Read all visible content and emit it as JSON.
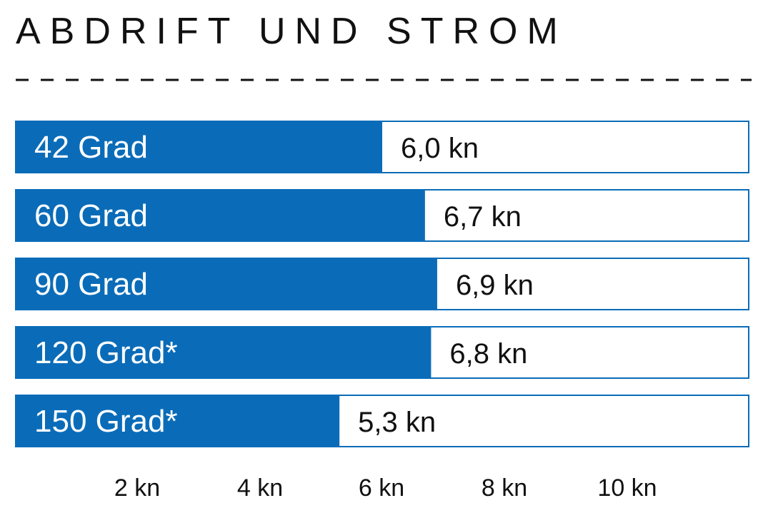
{
  "chart_data": {
    "type": "bar",
    "orientation": "horizontal",
    "title": "ABDRIFT UND STROM",
    "categories": [
      "42 Grad",
      "60 Grad",
      "90 Grad",
      "120 Grad*",
      "150 Grad*"
    ],
    "values": [
      6.0,
      6.7,
      6.9,
      6.8,
      5.3
    ],
    "value_labels": [
      "6,0 kn",
      "6,7 kn",
      "6,9 kn",
      "6,8 kn",
      "5,3 kn"
    ],
    "xticks": [
      2,
      4,
      6,
      8,
      10
    ],
    "xtick_labels": [
      "2 kn",
      "4 kn",
      "6 kn",
      "8 kn",
      "10 kn"
    ],
    "xlim": [
      0,
      12
    ],
    "grid": false,
    "legend": "none",
    "colors": {
      "bar": "#0a6cb8",
      "outline": "#0a6cb8",
      "text": "#111111",
      "bar_text": "#ffffff"
    }
  }
}
